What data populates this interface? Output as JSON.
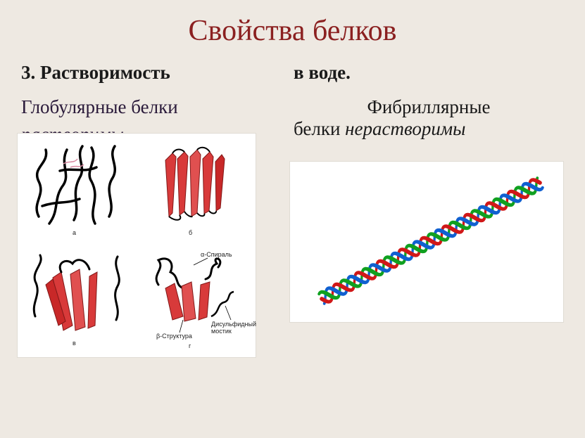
{
  "title": "Свойства белков",
  "left": {
    "line1_num": "3. ",
    "line1_bold": "Растворимость",
    "line2": "Глобулярные белки",
    "line3_italic": "растворимы",
    "panel_labels": {
      "a": "а",
      "b": "б",
      "c": "в",
      "d": "г"
    },
    "diagram_labels": {
      "alpha_helix": "α-Спираль",
      "beta_struct": "β-Структура",
      "disulfide": "Дисульфидный\nмостик"
    }
  },
  "right": {
    "line1": "в воде.",
    "line2_top": "Фибриллярные",
    "line2_bot_plain": "белки  ",
    "line2_bot_italic": "нерастворимы"
  },
  "globular_diagram": {
    "type": "protein-structure-panels",
    "panels": 4,
    "helix_color": "#000000",
    "sheet_color": "#d83a3a",
    "background": "#ffffff",
    "border": "#e0dcd4"
  },
  "fibrillar_diagram": {
    "type": "triple-helix",
    "strand_colors": [
      "#d01818",
      "#1060d0",
      "#10a020"
    ],
    "background": "#ffffff",
    "border": "#e0dcd4",
    "angle_deg": -28,
    "turns": 10
  }
}
